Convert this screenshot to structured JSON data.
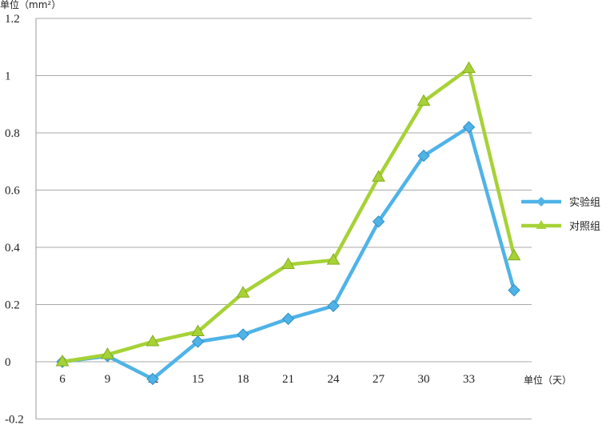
{
  "chart_data": {
    "type": "line",
    "ylabel": "单位（mm²）",
    "xlabel": "单位（天）",
    "categories": [
      "6",
      "9",
      "12",
      "15",
      "18",
      "21",
      "24",
      "27",
      "30",
      "33",
      ""
    ],
    "ylim": [
      -0.2,
      1.2
    ],
    "yticks": [
      "-0.2",
      "0",
      "0.2",
      "0.4",
      "0.6",
      "0.8",
      "1",
      "1.2"
    ],
    "ytick_values": [
      -0.2,
      0,
      0.2,
      0.4,
      0.6,
      0.8,
      1.0,
      1.2
    ],
    "grid": true,
    "legend_position": "right",
    "series": [
      {
        "name": "实验组",
        "color": "#4fb3e8",
        "marker": "diamond",
        "values": [
          0.0,
          0.02,
          -0.06,
          0.07,
          0.095,
          0.15,
          0.195,
          0.49,
          0.72,
          0.82,
          0.25
        ]
      },
      {
        "name": "对照组",
        "color": "#a6d236",
        "marker": "triangle",
        "values": [
          0.0,
          0.025,
          0.07,
          0.105,
          0.24,
          0.34,
          0.355,
          0.645,
          0.91,
          1.025,
          0.37
        ]
      }
    ]
  }
}
